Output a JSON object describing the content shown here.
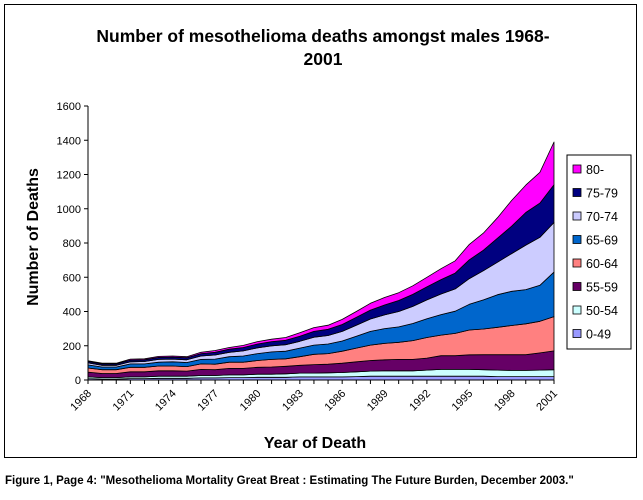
{
  "chart_data": {
    "type": "area",
    "stacked": true,
    "title_lines": [
      "Number of mesothelioma deaths amongst males 1968-",
      "2001"
    ],
    "xlabel": "Year of Death",
    "ylabel": "Number of Deaths",
    "ylim": [
      0,
      1600
    ],
    "yticks": [
      0,
      200,
      400,
      600,
      800,
      1000,
      1200,
      1400,
      1600
    ],
    "x": [
      1968,
      1969,
      1970,
      1971,
      1972,
      1973,
      1974,
      1975,
      1976,
      1977,
      1978,
      1979,
      1980,
      1981,
      1982,
      1983,
      1984,
      1985,
      1986,
      1987,
      1988,
      1989,
      1990,
      1991,
      1992,
      1993,
      1994,
      1995,
      1996,
      1997,
      1998,
      1999,
      2000,
      2001
    ],
    "xticks": [
      "1968",
      "1971",
      "1974",
      "1977",
      "1980",
      "1983",
      "1986",
      "1989",
      "1992",
      "1995",
      "1998",
      "2001"
    ],
    "grid": false,
    "legend_position": "right",
    "series": [
      {
        "name": "0-49",
        "color": "#9999ff",
        "values": [
          8,
          6,
          6,
          8,
          8,
          10,
          10,
          10,
          12,
          12,
          14,
          14,
          16,
          16,
          16,
          18,
          18,
          18,
          18,
          20,
          22,
          22,
          22,
          22,
          22,
          22,
          22,
          22,
          22,
          20,
          20,
          20,
          20,
          20
        ]
      },
      {
        "name": "50-54",
        "color": "#ccffff",
        "values": [
          10,
          8,
          8,
          10,
          10,
          12,
          12,
          12,
          14,
          14,
          16,
          16,
          18,
          18,
          20,
          22,
          22,
          24,
          26,
          28,
          30,
          32,
          32,
          32,
          36,
          40,
          40,
          40,
          38,
          38,
          36,
          36,
          38,
          40
        ]
      },
      {
        "name": "55-59",
        "color": "#660066",
        "values": [
          28,
          24,
          24,
          30,
          30,
          32,
          32,
          30,
          36,
          34,
          38,
          38,
          40,
          42,
          44,
          46,
          50,
          50,
          54,
          58,
          62,
          64,
          66,
          66,
          70,
          80,
          80,
          85,
          88,
          90,
          92,
          92,
          100,
          110
        ]
      },
      {
        "name": "60-64",
        "color": "#ff8080",
        "values": [
          24,
          22,
          22,
          26,
          26,
          28,
          28,
          26,
          32,
          32,
          36,
          36,
          40,
          44,
          44,
          50,
          60,
          62,
          70,
          80,
          90,
          96,
          100,
          110,
          120,
          120,
          130,
          145,
          150,
          160,
          170,
          180,
          185,
          200
        ]
      },
      {
        "name": "65-69",
        "color": "#0066cc",
        "values": [
          18,
          16,
          16,
          20,
          20,
          22,
          24,
          24,
          26,
          30,
          32,
          36,
          40,
          44,
          44,
          50,
          54,
          56,
          60,
          70,
          80,
          86,
          90,
          100,
          110,
          120,
          130,
          150,
          170,
          190,
          200,
          200,
          210,
          260
        ]
      },
      {
        "name": "70-74",
        "color": "#ccccff",
        "values": [
          12,
          10,
          10,
          12,
          14,
          16,
          16,
          16,
          20,
          24,
          26,
          30,
          34,
          36,
          38,
          40,
          46,
          50,
          56,
          64,
          72,
          80,
          90,
          100,
          110,
          120,
          130,
          150,
          170,
          190,
          220,
          260,
          280,
          290
        ]
      },
      {
        "name": "75-79",
        "color": "#000080",
        "values": [
          8,
          8,
          8,
          10,
          10,
          12,
          12,
          12,
          14,
          16,
          18,
          20,
          22,
          24,
          26,
          30,
          34,
          36,
          40,
          46,
          52,
          58,
          64,
          70,
          76,
          84,
          92,
          110,
          120,
          140,
          160,
          190,
          200,
          220
        ]
      },
      {
        "name": "80-",
        "color": "#ff00ff",
        "values": [
          4,
          4,
          4,
          6,
          6,
          6,
          6,
          6,
          8,
          10,
          10,
          12,
          14,
          14,
          16,
          20,
          22,
          24,
          30,
          34,
          40,
          44,
          46,
          50,
          56,
          64,
          72,
          90,
          100,
          120,
          150,
          160,
          180,
          250
        ]
      }
    ]
  },
  "caption": "Figure 1, Page 4: \"Mesothelioma Mortality Great Breat : Estimating The Future Burden, December 2003.\""
}
